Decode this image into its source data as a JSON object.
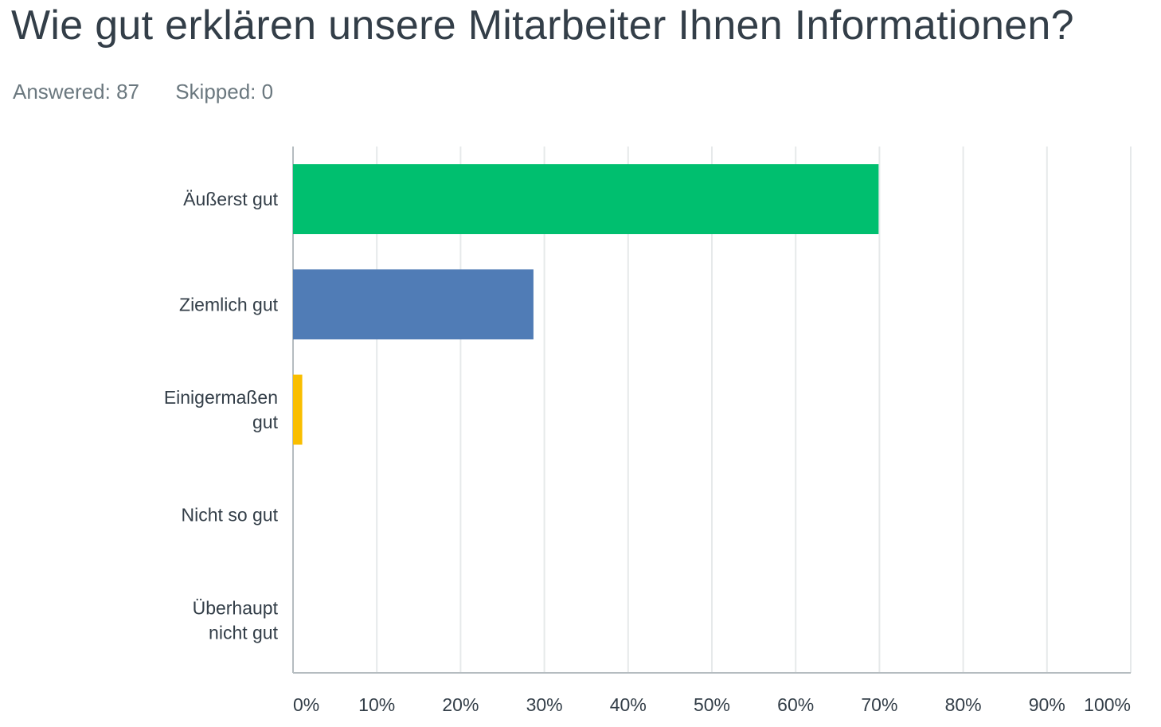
{
  "question": {
    "title": "Wie gut erklären unsere Mitarbeiter Ihnen Informationen?",
    "answered": "Answered: 87",
    "skipped": "Skipped: 0"
  },
  "chart_data": {
    "type": "bar",
    "orientation": "horizontal",
    "title": "",
    "xlabel": "",
    "ylabel": "",
    "categories": [
      [
        "Äußerst gut"
      ],
      [
        "Ziemlich gut"
      ],
      [
        "Einigermaßen",
        "gut"
      ],
      [
        "Nicht so gut"
      ],
      [
        "Überhaupt",
        "nicht gut"
      ]
    ],
    "values": [
      69.9,
      28.7,
      1.1,
      0,
      0
    ],
    "colors": [
      "#00bf6f",
      "#507cb6",
      "#f9be00",
      "#6bc8cd",
      "#ff8b4f"
    ],
    "xlim": [
      0,
      100
    ],
    "ticks": [
      "0%",
      "10%",
      "20%",
      "30%",
      "40%",
      "50%",
      "60%",
      "70%",
      "80%",
      "90%",
      "100%"
    ],
    "grid": true
  }
}
